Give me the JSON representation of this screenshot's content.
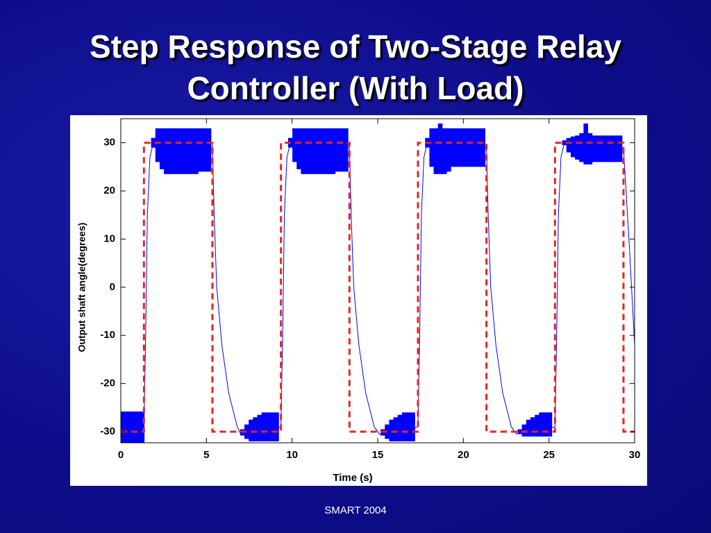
{
  "title_lines": [
    "Step Response of Two-Stage Relay",
    "Controller (With Load)"
  ],
  "footer": "SMART 2004",
  "chart_data": {
    "type": "line",
    "xlabel": "Time (s)",
    "ylabel": "Output shaft angle(degrees)",
    "xlim": [
      0,
      30
    ],
    "ylim": [
      -32.3,
      35
    ],
    "xticks": [
      0,
      5,
      10,
      15,
      20,
      25,
      30
    ],
    "yticks": [
      30,
      20,
      10,
      0,
      -10,
      -20,
      -30
    ],
    "series": [
      {
        "color": "#0000ff",
        "style": "solid",
        "x": [
          0,
          1.35,
          1.45,
          1.55,
          1.7,
          1.9,
          5.35,
          5.45,
          5.6,
          5.9,
          6.3,
          6.8,
          7.0,
          9.35,
          9.45,
          9.55,
          9.7,
          9.9,
          13.35,
          13.45,
          13.6,
          13.9,
          14.3,
          14.8,
          15.1,
          17.35,
          17.45,
          17.55,
          17.7,
          17.9,
          21.35,
          21.45,
          21.6,
          21.9,
          22.3,
          22.8,
          23.1,
          25.35,
          25.45,
          25.55,
          25.7,
          25.9,
          29.35,
          29.5,
          29.7,
          30
        ],
        "values": [
          -29,
          -29,
          -10,
          15,
          27,
          30,
          30,
          15,
          0,
          -12,
          -22,
          -29,
          -30.5,
          -29,
          -10,
          15,
          27,
          30,
          29,
          15,
          0,
          -12,
          -22,
          -29,
          -30.5,
          -29,
          -10,
          15,
          27,
          30,
          29,
          15,
          0,
          -12,
          -22,
          -29,
          -30.5,
          -29,
          -10,
          15,
          27,
          30,
          29,
          20,
          8,
          -12
        ]
      },
      {
        "color": "#e8231f",
        "style": "dashed",
        "x": [
          0,
          1.35,
          1.35,
          5.35,
          5.35,
          9.35,
          9.35,
          13.35,
          13.35,
          17.35,
          17.35,
          21.35,
          21.35,
          25.35,
          25.35,
          29.35,
          29.35,
          30
        ],
        "values": [
          -30,
          -30,
          30,
          30,
          -30,
          -30,
          30,
          30,
          -30,
          -30,
          30,
          30,
          -30,
          -30,
          30,
          30,
          -30,
          -30
        ]
      }
    ],
    "bands": [
      {
        "color": "#0000ff",
        "x": [
          0,
          0.25,
          0.5,
          0.75,
          1,
          1.25,
          1.9,
          2.15,
          2.4,
          2.65,
          2.9,
          3.15,
          3.4,
          3.65,
          3.9,
          4.15,
          4.4,
          4.65,
          4.9,
          5.15,
          7.1,
          7.35,
          7.6,
          7.85,
          8.1,
          8.35,
          8.6,
          8.85,
          9.1,
          9.9,
          10.15,
          10.4,
          10.65,
          10.9,
          11.15,
          11.4,
          11.65,
          11.9,
          12.15,
          12.4,
          12.65,
          12.9,
          13.15,
          15.3,
          15.55,
          15.8,
          16.05,
          16.3,
          16.55,
          16.8,
          17.05,
          17.9,
          18.15,
          18.4,
          18.65,
          18.9,
          19.15,
          19.4,
          19.65,
          19.9,
          20.15,
          20.4,
          20.65,
          20.9,
          21.15,
          23.3,
          23.55,
          23.8,
          24.05,
          24.3,
          24.55,
          24.8,
          25.05,
          25.9,
          26.15,
          26.4,
          26.65,
          26.9,
          27.15,
          27.4,
          27.65,
          27.9,
          28.15,
          28.4,
          28.65,
          28.9,
          29.15
        ],
        "upper": [
          -25.8,
          -25.8,
          -25.8,
          -25.8,
          -25.8,
          -25.8,
          31,
          33,
          33,
          33,
          33,
          33,
          33,
          33,
          33,
          33,
          33,
          33,
          33,
          33,
          -29.5,
          -28.5,
          -27.5,
          -27,
          -26.5,
          -26,
          -26,
          -26,
          -26,
          31,
          33,
          33,
          33,
          33,
          33,
          33,
          33,
          33,
          33,
          33,
          33,
          33,
          33,
          -29.5,
          -28.5,
          -27.5,
          -27,
          -26.5,
          -26,
          -26,
          -26,
          31,
          33,
          33,
          34,
          33,
          33,
          33,
          33,
          33,
          33,
          33,
          33,
          33,
          33,
          -29.5,
          -28.5,
          -27.5,
          -27,
          -26.5,
          -26,
          -26,
          -26,
          30.5,
          31,
          31.3,
          31.5,
          32,
          34,
          32,
          31.5,
          31.5,
          31.5,
          31.5,
          31.5,
          31.5,
          31.5
        ],
        "lower": [
          -32.5,
          -32.5,
          -32.5,
          -32.5,
          -32.5,
          -32.5,
          29,
          26,
          24.5,
          23.5,
          23.5,
          23.5,
          23.5,
          23.5,
          23.5,
          23.5,
          23.5,
          24,
          24,
          24,
          -30.8,
          -31.5,
          -32,
          -32,
          -32,
          -32,
          -32,
          -32,
          -32,
          29,
          26,
          24.5,
          23.5,
          23.5,
          23.5,
          23.5,
          23.5,
          23.5,
          23.5,
          23.5,
          24,
          24,
          24,
          -30.8,
          -31.5,
          -32,
          -32,
          -32,
          -32,
          -32,
          -32,
          29,
          25,
          23.5,
          23.5,
          23.5,
          24,
          25,
          25,
          25,
          25,
          25,
          25,
          25,
          25,
          -30.5,
          -31,
          -31,
          -31,
          -31,
          -31,
          -31,
          -31,
          29.5,
          28,
          27,
          26.5,
          26,
          25.5,
          25.5,
          26,
          26,
          26,
          26,
          26,
          26,
          26
        ]
      }
    ]
  }
}
